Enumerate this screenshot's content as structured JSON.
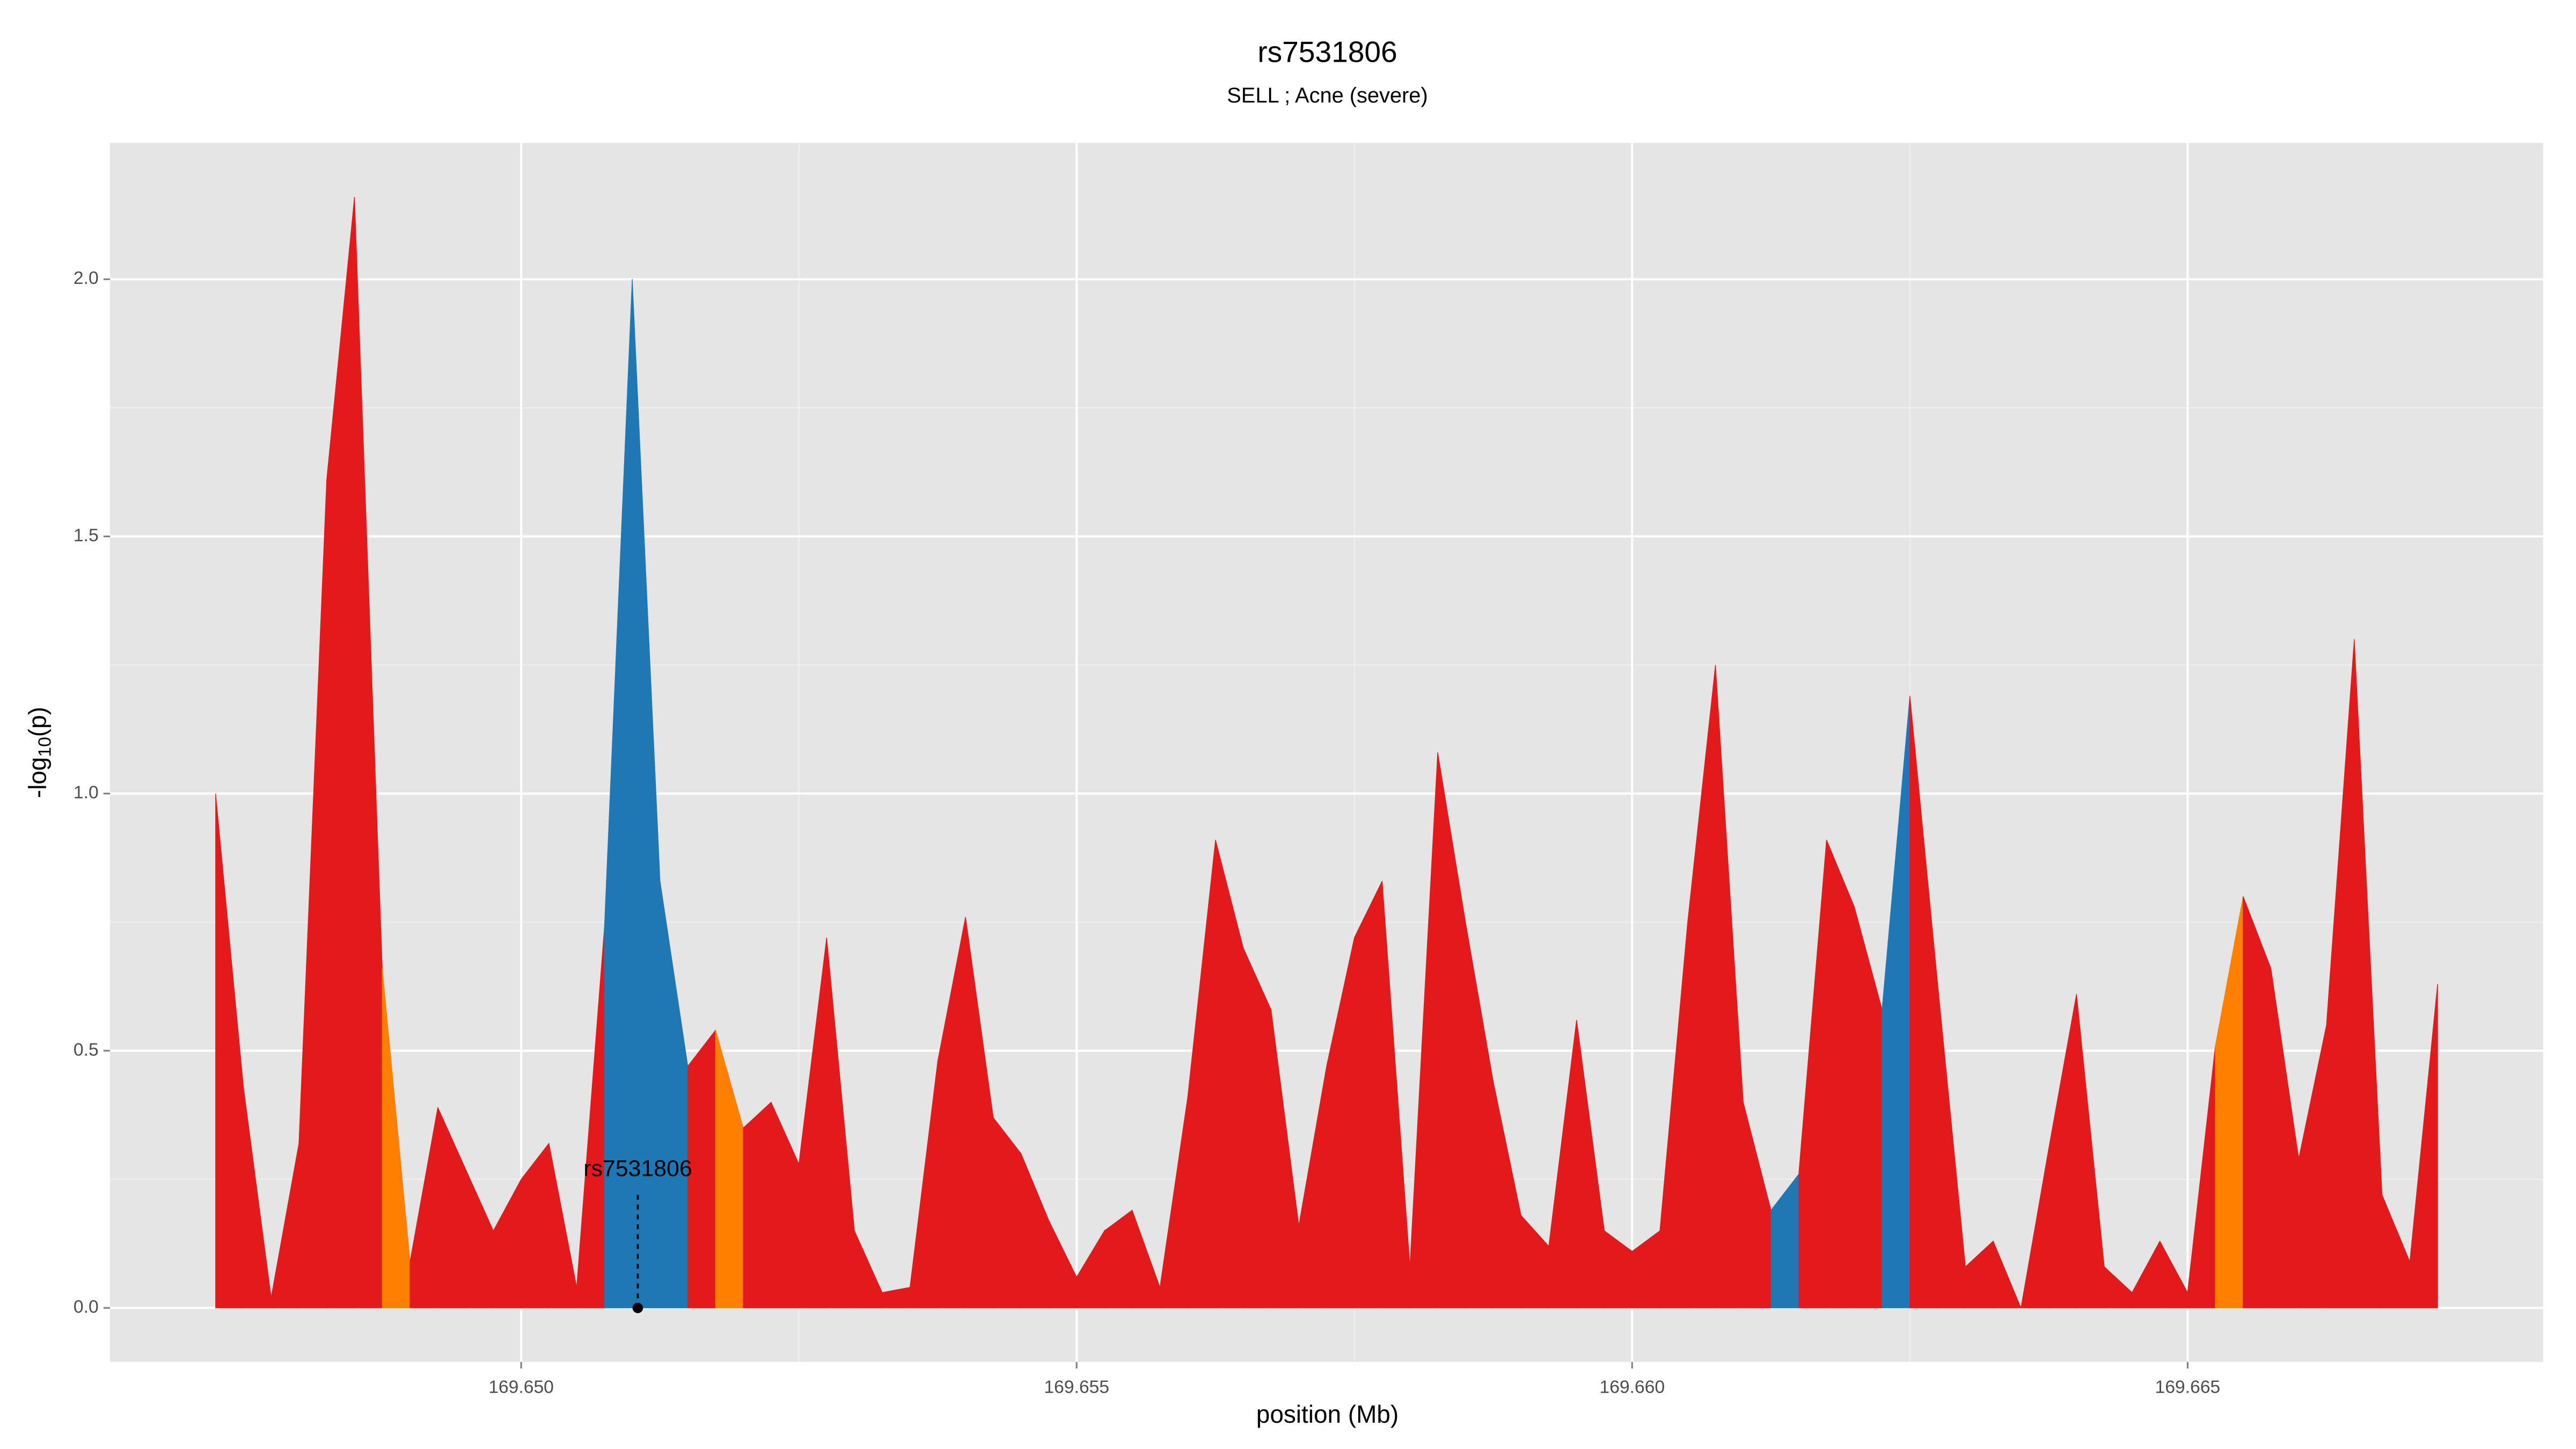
{
  "chart_data": {
    "type": "area",
    "title": "rs7531806",
    "subtitle": "SELL ; Acne (severe)",
    "xlabel": "position (Mb)",
    "ylabel": {
      "main": "-log",
      "sub": "10",
      "end": "(p)"
    },
    "x": [
      169.64725,
      169.6475,
      169.64775,
      169.648,
      169.64825,
      169.6485,
      169.64875,
      169.649,
      169.64925,
      169.6495,
      169.64975,
      169.65,
      169.65025,
      169.6505,
      169.65075,
      169.651,
      169.65125,
      169.6515,
      169.65175,
      169.652,
      169.65225,
      169.6525,
      169.65275,
      169.653,
      169.65325,
      169.6535,
      169.65375,
      169.654,
      169.65425,
      169.6545,
      169.65475,
      169.655,
      169.65525,
      169.6555,
      169.65575,
      169.656,
      169.65625,
      169.6565,
      169.65675,
      169.657,
      169.65725,
      169.6575,
      169.65775,
      169.658,
      169.65825,
      169.6585,
      169.65875,
      169.659,
      169.65925,
      169.6595,
      169.65975,
      169.66,
      169.66025,
      169.6605,
      169.66075,
      169.661,
      169.66125,
      169.6615,
      169.66175,
      169.662,
      169.66225,
      169.6625,
      169.66275,
      169.663,
      169.66325,
      169.6635,
      169.66375,
      169.664,
      169.66425,
      169.6645,
      169.66475,
      169.665,
      169.66525,
      169.6655,
      169.66575,
      169.666,
      169.66625,
      169.6665,
      169.66675,
      169.667,
      169.66725
    ],
    "series": [
      {
        "values": [
          1.0,
          0.43,
          0.02,
          0.32,
          1.61,
          2.16,
          0.66,
          0.09,
          0.39,
          0.27,
          0.15,
          0.25,
          0.32,
          0.04,
          0.74,
          2.0,
          0.83,
          0.47,
          0.54,
          0.35,
          0.4,
          0.28,
          0.72,
          0.15,
          0.03,
          0.04,
          0.48,
          0.76,
          0.37,
          0.3,
          0.17,
          0.06,
          0.15,
          0.19,
          0.04,
          0.41,
          0.91,
          0.7,
          0.58,
          0.16,
          0.47,
          0.72,
          0.83,
          0.08,
          1.08,
          0.75,
          0.44,
          0.18,
          0.12,
          0.56,
          0.15,
          0.11,
          0.15,
          0.75,
          1.25,
          0.4,
          0.19,
          0.26,
          0.91,
          0.78,
          0.58,
          1.19,
          0.63,
          0.08,
          0.13,
          0.0,
          0.31,
          0.61,
          0.08,
          0.03,
          0.13,
          0.03,
          0.51,
          0.8,
          0.66,
          0.29,
          0.55,
          1.3,
          0.22,
          0.09,
          0.63
        ],
        "strip_colors": [
          "#e31a1c",
          "#e31a1c",
          "#e31a1c",
          "#e31a1c",
          "#e31a1c",
          "#e31a1c",
          "#ff7f00",
          "#e31a1c",
          "#e31a1c",
          "#e31a1c",
          "#e31a1c",
          "#e31a1c",
          "#e31a1c",
          "#e31a1c",
          "#1f78b4",
          "#1f78b4",
          "#1f78b4",
          "#e31a1c",
          "#ff7f00",
          "#e31a1c",
          "#e31a1c",
          "#e31a1c",
          "#e31a1c",
          "#e31a1c",
          "#e31a1c",
          "#e31a1c",
          "#e31a1c",
          "#e31a1c",
          "#e31a1c",
          "#e31a1c",
          "#e31a1c",
          "#e31a1c",
          "#e31a1c",
          "#e31a1c",
          "#e31a1c",
          "#e31a1c",
          "#e31a1c",
          "#e31a1c",
          "#e31a1c",
          "#e31a1c",
          "#e31a1c",
          "#e31a1c",
          "#e31a1c",
          "#e31a1c",
          "#e31a1c",
          "#e31a1c",
          "#e31a1c",
          "#e31a1c",
          "#e31a1c",
          "#e31a1c",
          "#e31a1c",
          "#e31a1c",
          "#e31a1c",
          "#e31a1c",
          "#e31a1c",
          "#e31a1c",
          "#1f78b4",
          "#e31a1c",
          "#e31a1c",
          "#e31a1c",
          "#1f78b4",
          "#e31a1c",
          "#e31a1c",
          "#e31a1c",
          "#e31a1c",
          "#e31a1c",
          "#e31a1c",
          "#e31a1c",
          "#e31a1c",
          "#e31a1c",
          "#e31a1c",
          "#e31a1c",
          "#ff7f00",
          "#e31a1c",
          "#e31a1c",
          "#e31a1c",
          "#e31a1c",
          "#e31a1c",
          "#e31a1c",
          "#e31a1c"
        ]
      }
    ],
    "annotation": {
      "text": "rs7531806",
      "x": 169.65105,
      "y": 0,
      "label_y": 0.22
    },
    "xlim": [
      169.6463,
      169.6682
    ],
    "ylim": [
      -0.105,
      2.265
    ],
    "xticks": [
      {
        "value": 169.65,
        "label": "169.650"
      },
      {
        "value": 169.655,
        "label": "169.655"
      },
      {
        "value": 169.66,
        "label": "169.660"
      },
      {
        "value": 169.665,
        "label": "169.665"
      }
    ],
    "yticks": [
      {
        "value": 0,
        "label": "0.0"
      },
      {
        "value": 0.5,
        "label": "0.5"
      },
      {
        "value": 1,
        "label": "1.0"
      },
      {
        "value": 1.5,
        "label": "1.5"
      },
      {
        "value": 2,
        "label": "2.0"
      }
    ],
    "grid": true
  }
}
